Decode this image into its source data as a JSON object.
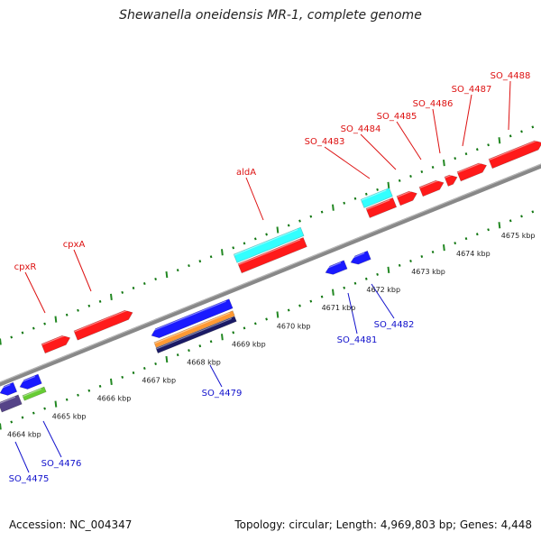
{
  "header": {
    "title": "Shewanella oneidensis MR-1, complete genome"
  },
  "footer": {
    "accession": "Accession: NC_004347",
    "summary": "Topology: circular; Length: 4,969,803 bp; Genes: 4,448"
  },
  "scale": {
    "ticks": [
      {
        "kbp": 4664,
        "label": "4664 kbp"
      },
      {
        "kbp": 4665,
        "label": "4665 kbp"
      },
      {
        "kbp": 4666,
        "label": "4666 kbp"
      },
      {
        "kbp": 4667,
        "label": "4667 kbp"
      },
      {
        "kbp": 4668,
        "label": "4668 kbp"
      },
      {
        "kbp": 4669,
        "label": "4669 kbp"
      },
      {
        "kbp": 4670,
        "label": "4670 kbp"
      },
      {
        "kbp": 4671,
        "label": "4671 kbp"
      },
      {
        "kbp": 4672,
        "label": "4672 kbp"
      },
      {
        "kbp": 4673,
        "label": "4673 kbp"
      },
      {
        "kbp": 4674,
        "label": "4674 kbp"
      },
      {
        "kbp": 4675,
        "label": "4675 kbp"
      }
    ]
  },
  "colors": {
    "forward_cds": "#ff1a1a",
    "reverse_cds": "#1a1aff",
    "rna": "#33ffff",
    "orange_track": "#ff9933",
    "navy_track": "#1a1a66",
    "green_track": "#66cc33",
    "purple_track": "#554488",
    "backbone": "#888888",
    "tick_major": "#228822",
    "tick_minor": "#117711",
    "label_forward": "#dd1111",
    "label_reverse": "#1111cc"
  },
  "labels": {
    "forward": [
      {
        "id": "cpxR",
        "text": "cpxR"
      },
      {
        "id": "cpxA",
        "text": "cpxA"
      },
      {
        "id": "aldA",
        "text": "aldA"
      },
      {
        "id": "SO_4483",
        "text": "SO_4483"
      },
      {
        "id": "SO_4484",
        "text": "SO_4484"
      },
      {
        "id": "SO_4485",
        "text": "SO_4485"
      },
      {
        "id": "SO_4486",
        "text": "SO_4486"
      },
      {
        "id": "SO_4487",
        "text": "SO_4487"
      },
      {
        "id": "SO_4488",
        "text": "SO_4488"
      }
    ],
    "reverse": [
      {
        "id": "SO_4475",
        "text": "SO_4475"
      },
      {
        "id": "SO_4476",
        "text": "SO_4476"
      },
      {
        "id": "SO_4479",
        "text": "SO_4479"
      },
      {
        "id": "SO_4481",
        "text": "SO_4481"
      },
      {
        "id": "SO_4482",
        "text": "SO_4482"
      }
    ]
  }
}
